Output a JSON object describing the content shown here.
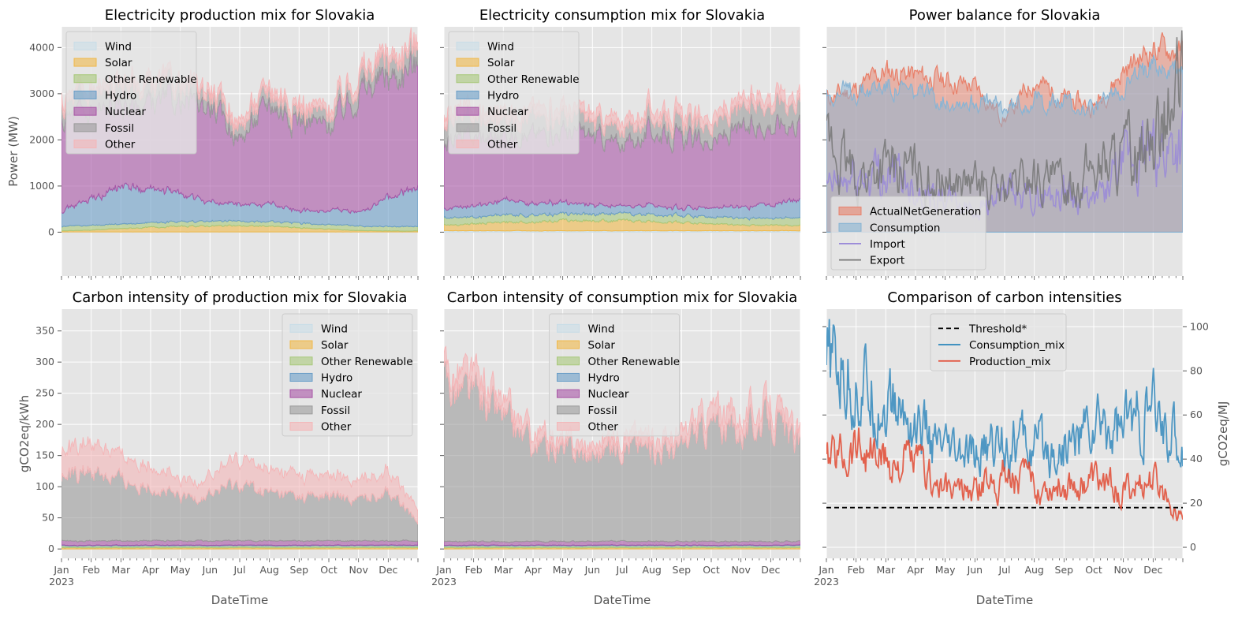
{
  "colors": {
    "Other": "#f4b6b8",
    "Fossil": "#9b9b9b",
    "Nuclear": "#a855a6",
    "Hydro": "#6a9ec8",
    "Other Renewable": "#a8c87a",
    "Solar": "#f0b94a",
    "Wind": "#c9dde7",
    "ActualNetGeneration": "#e8806a",
    "Consumption": "#88b4d4",
    "Import": "#9a8ad8",
    "Export": "#777777",
    "Consumption_mix": "#348abd",
    "Production_mix": "#e24a33",
    "Threshold*": "#000000"
  },
  "months": [
    "Jan",
    "Feb",
    "Mar",
    "Apr",
    "May",
    "Jun",
    "Jul",
    "Aug",
    "Sep",
    "Oct",
    "Nov",
    "Dec"
  ],
  "year_label": "2023",
  "chart_data": [
    {
      "type": "area",
      "title": "Electricity production mix for Slovakia",
      "ylabel": "Power (MW)",
      "xlabel": "",
      "ylim": [
        -950,
        4450
      ],
      "yticks": [
        0,
        1000,
        2000,
        3000,
        4000
      ],
      "legend": "top-left",
      "x_months": [
        0,
        1,
        2,
        3,
        4,
        5,
        6,
        7,
        8,
        9,
        10,
        11,
        12
      ],
      "series": [
        {
          "name": "Wind",
          "values": [
            5,
            5,
            5,
            5,
            5,
            5,
            5,
            5,
            5,
            5,
            5,
            5,
            5
          ]
        },
        {
          "name": "Solar",
          "values": [
            20,
            40,
            70,
            100,
            120,
            130,
            130,
            120,
            90,
            60,
            30,
            20,
            20
          ]
        },
        {
          "name": "Other Renewable",
          "values": [
            100,
            100,
            100,
            100,
            100,
            100,
            100,
            100,
            100,
            100,
            100,
            100,
            100
          ]
        },
        {
          "name": "Hydro",
          "values": [
            350,
            550,
            800,
            700,
            600,
            400,
            350,
            400,
            250,
            300,
            300,
            600,
            850
          ]
        },
        {
          "name": "Nuclear",
          "values": [
            1950,
            1900,
            1750,
            1850,
            1950,
            2100,
            1400,
            2200,
            2000,
            1800,
            2600,
            2600,
            2650
          ]
        },
        {
          "name": "Fossil",
          "values": [
            300,
            350,
            400,
            350,
            300,
            250,
            250,
            250,
            200,
            250,
            300,
            350,
            350
          ]
        },
        {
          "name": "Other",
          "values": [
            150,
            150,
            150,
            150,
            150,
            150,
            150,
            150,
            150,
            150,
            150,
            150,
            150
          ]
        }
      ]
    },
    {
      "type": "area",
      "title": "Electricity consumption mix for Slovakia",
      "ylabel": "",
      "xlabel": "",
      "ylim": [
        -950,
        4450
      ],
      "legend": "top-left",
      "x_months": [
        0,
        1,
        2,
        3,
        4,
        5,
        6,
        7,
        8,
        9,
        10,
        11,
        12
      ],
      "series": [
        {
          "name": "Wind",
          "values": [
            30,
            30,
            30,
            30,
            30,
            30,
            30,
            30,
            30,
            30,
            30,
            30,
            30
          ]
        },
        {
          "name": "Solar",
          "values": [
            120,
            150,
            180,
            200,
            220,
            220,
            220,
            200,
            180,
            150,
            120,
            120,
            120
          ]
        },
        {
          "name": "Other Renewable",
          "values": [
            150,
            150,
            150,
            150,
            150,
            150,
            150,
            150,
            150,
            150,
            150,
            150,
            150
          ]
        },
        {
          "name": "Hydro",
          "values": [
            200,
            250,
            300,
            250,
            250,
            200,
            150,
            200,
            150,
            200,
            250,
            300,
            400
          ]
        },
        {
          "name": "Nuclear",
          "values": [
            1500,
            1500,
            1400,
            1500,
            1550,
            1500,
            1300,
            1600,
            1500,
            1400,
            1650,
            1750,
            1700
          ]
        },
        {
          "name": "Fossil",
          "values": [
            400,
            400,
            400,
            380,
            350,
            320,
            320,
            320,
            300,
            350,
            450,
            500,
            450
          ]
        },
        {
          "name": "Other",
          "values": [
            200,
            200,
            200,
            200,
            200,
            200,
            200,
            200,
            200,
            200,
            200,
            200,
            200
          ]
        }
      ]
    },
    {
      "type": "area",
      "title": "Power balance for Slovakia",
      "ylabel": "",
      "xlabel": "",
      "ylim": [
        -950,
        4450
      ],
      "legend": "bottom-left",
      "x_months": [
        0,
        1,
        2,
        3,
        4,
        5,
        6,
        7,
        8,
        9,
        10,
        11,
        12
      ],
      "series": [
        {
          "name": "ActualNetGeneration",
          "kind": "area",
          "values": [
            2900,
            3100,
            3500,
            3400,
            3300,
            3150,
            2450,
            3300,
            2900,
            2700,
            3500,
            4000,
            3900
          ]
        },
        {
          "name": "Consumption",
          "kind": "area",
          "values": [
            3000,
            3050,
            3200,
            3000,
            2900,
            2850,
            2700,
            2900,
            2800,
            2600,
            3200,
            3600,
            3500
          ]
        },
        {
          "name": "Import",
          "kind": "line",
          "values": [
            900,
            1200,
            1300,
            1000,
            700,
            500,
            800,
            700,
            900,
            600,
            1400,
            1700,
            2000
          ]
        },
        {
          "name": "Export",
          "kind": "line",
          "values": [
            1800,
            1200,
            1400,
            1300,
            1100,
            1000,
            900,
            1200,
            1000,
            1400,
            1600,
            2000,
            3000
          ]
        }
      ]
    },
    {
      "type": "area",
      "title": "Carbon intensity of production mix for Slovakia",
      "ylabel": "gCO2eq/kWh",
      "xlabel": "DateTime",
      "ylim": [
        -15,
        385
      ],
      "yticks": [
        0,
        50,
        100,
        150,
        200,
        250,
        300,
        350
      ],
      "legend": "top-right",
      "x_months": [
        0,
        1,
        2,
        3,
        4,
        5,
        6,
        7,
        8,
        9,
        10,
        11,
        12
      ],
      "series": [
        {
          "name": "Wind",
          "values": [
            0,
            0,
            0,
            0,
            0,
            0,
            0,
            0,
            0,
            0,
            0,
            0,
            0
          ]
        },
        {
          "name": "Solar",
          "values": [
            2,
            2,
            2,
            2,
            2,
            2,
            2,
            2,
            2,
            2,
            2,
            2,
            2
          ]
        },
        {
          "name": "Other Renewable",
          "values": [
            3,
            3,
            3,
            3,
            3,
            3,
            3,
            3,
            3,
            3,
            3,
            3,
            3
          ]
        },
        {
          "name": "Hydro",
          "values": [
            1,
            1,
            1,
            1,
            1,
            1,
            1,
            1,
            1,
            1,
            1,
            1,
            1
          ]
        },
        {
          "name": "Nuclear",
          "values": [
            7,
            7,
            7,
            7,
            7,
            7,
            7,
            7,
            7,
            7,
            7,
            7,
            7
          ]
        },
        {
          "name": "Fossil",
          "values": [
            100,
            115,
            95,
            90,
            65,
            75,
            90,
            75,
            70,
            70,
            65,
            80,
            30
          ]
        },
        {
          "name": "Other",
          "values": [
            40,
            45,
            40,
            35,
            25,
            30,
            40,
            35,
            35,
            35,
            30,
            35,
            20
          ]
        }
      ]
    },
    {
      "type": "area",
      "title": "Carbon intensity of consumption mix for Slovakia",
      "ylabel": "",
      "xlabel": "DateTime",
      "ylim": [
        -15,
        385
      ],
      "legend": "top-center",
      "x_months": [
        0,
        1,
        2,
        3,
        4,
        5,
        6,
        7,
        8,
        9,
        10,
        11,
        12
      ],
      "series": [
        {
          "name": "Wind",
          "values": [
            0,
            0,
            0,
            0,
            0,
            0,
            0,
            0,
            0,
            0,
            0,
            0,
            0
          ]
        },
        {
          "name": "Solar",
          "values": [
            2,
            2,
            2,
            2,
            2,
            2,
            2,
            2,
            2,
            2,
            2,
            2,
            2
          ]
        },
        {
          "name": "Other Renewable",
          "values": [
            3,
            3,
            3,
            3,
            3,
            3,
            3,
            3,
            3,
            3,
            3,
            3,
            3
          ]
        },
        {
          "name": "Hydro",
          "values": [
            1,
            1,
            1,
            1,
            1,
            1,
            1,
            1,
            1,
            1,
            1,
            1,
            1
          ]
        },
        {
          "name": "Nuclear",
          "values": [
            6,
            6,
            6,
            6,
            6,
            6,
            6,
            6,
            6,
            6,
            6,
            6,
            6
          ]
        },
        {
          "name": "Fossil",
          "values": [
            260,
            230,
            200,
            150,
            150,
            140,
            160,
            150,
            150,
            190,
            180,
            200,
            150
          ]
        },
        {
          "name": "Other",
          "values": [
            20,
            30,
            20,
            20,
            15,
            15,
            20,
            20,
            20,
            30,
            25,
            25,
            20
          ]
        }
      ]
    },
    {
      "type": "line",
      "title": "Comparison of carbon intensities",
      "ylabel": "gCO2eq/MJ",
      "xlabel": "DateTime",
      "ylim": [
        -5,
        108
      ],
      "yticks": [
        0,
        20,
        40,
        60,
        80,
        100
      ],
      "legend": "top-center",
      "x_months": [
        0,
        1,
        2,
        3,
        4,
        5,
        6,
        7,
        8,
        9,
        10,
        11,
        12
      ],
      "series": [
        {
          "name": "Threshold*",
          "style": "dashed",
          "values": [
            18,
            18,
            18,
            18,
            18,
            18,
            18,
            18,
            18,
            18,
            18,
            18,
            18
          ]
        },
        {
          "name": "Consumption_mix",
          "values": [
            82,
            75,
            65,
            55,
            40,
            40,
            50,
            45,
            45,
            55,
            55,
            60,
            45
          ]
        },
        {
          "name": "Production_mix",
          "values": [
            38,
            48,
            38,
            38,
            25,
            25,
            35,
            28,
            28,
            30,
            25,
            30,
            15
          ]
        }
      ]
    }
  ]
}
